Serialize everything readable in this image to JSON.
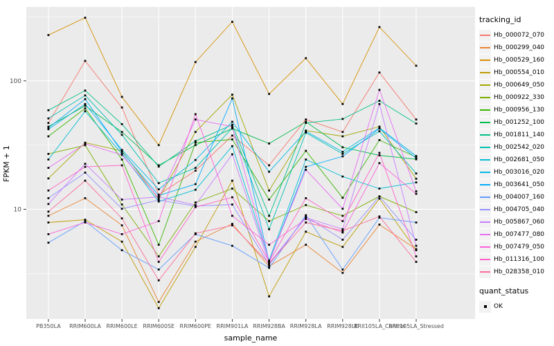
{
  "figure": {
    "background": "#FFFFFF",
    "panel_bg": "#EBEBEB",
    "grid_color": "#FFFFFF",
    "tick_label_color": "#4D4D4D",
    "axis_title_color": "#000000",
    "marker_color": "#000000"
  },
  "chart_data": {
    "type": "line",
    "title": "",
    "xlabel": "sample_name",
    "ylabel": "FPKM + 1",
    "y_scale": "log10",
    "ylim": [
      1.4,
      376
    ],
    "y_tick_values": [
      100,
      10
    ],
    "y_tick_labels": [
      "100",
      "10"
    ],
    "y_minor_tick_values": [
      316.2,
      31.62,
      3.162
    ],
    "grid": true,
    "legend_position": "right",
    "legend_title": "tracking_id",
    "marker": "black-square",
    "quant_legend": {
      "title": "quant_status",
      "items": [
        {
          "label": "OK",
          "marker": "black-square"
        }
      ]
    },
    "categories": [
      "PB350LA",
      "RRIM600LA",
      "RRIM600LE",
      "RRIM600SE",
      "RRIM600PE",
      "RRIM901LA",
      "RRIM928BA",
      "RRIM928LA",
      "RRIM928LE",
      "RRII105LA_Control",
      "RRII105LA_Stressed"
    ],
    "series": [
      {
        "name": "Hb_000072_070",
        "color": "#F8766D",
        "values": [
          47,
          143,
          62,
          13,
          20,
          37.5,
          22,
          50,
          40,
          116,
          50
        ]
      },
      {
        "name": "Hb_000299_040",
        "color": "#EA8331",
        "values": [
          8.9,
          12.2,
          7.5,
          1.9,
          5.6,
          7.7,
          3.6,
          5.3,
          3.2,
          7.6,
          4.9
        ]
      },
      {
        "name": "Hb_000529_160",
        "color": "#D89000",
        "values": [
          227,
          310,
          75,
          31.6,
          140,
          288,
          79,
          150,
          66,
          262,
          131
        ]
      },
      {
        "name": "Hb_000554_010",
        "color": "#C09B00",
        "values": [
          7.9,
          8.3,
          5.6,
          1.7,
          5.1,
          16.7,
          2.1,
          6.7,
          5.1,
          12.1,
          4.8
        ]
      },
      {
        "name": "Hb_000649_050",
        "color": "#A3A500",
        "values": [
          17.4,
          33,
          28.5,
          12,
          40,
          78,
          14,
          41,
          37,
          44,
          17.3
        ]
      },
      {
        "name": "Hb_000922_330",
        "color": "#7CAE00",
        "values": [
          27,
          31.5,
          10.9,
          4.3,
          11.3,
          14.5,
          8.1,
          10.8,
          8.9,
          12.6,
          9.5
        ]
      },
      {
        "name": "Hb_000956_130",
        "color": "#39B600",
        "values": [
          37,
          61,
          24.4,
          5.3,
          33,
          35,
          11.9,
          28.5,
          12.3,
          34.6,
          25.5
        ]
      },
      {
        "name": "Hb_001252_100",
        "color": "#00BB4E",
        "values": [
          44,
          64,
          40,
          22,
          31.6,
          42.5,
          32.5,
          48,
          30.4,
          26.3,
          24.5
        ]
      },
      {
        "name": "Hb_001811_140",
        "color": "#00C087",
        "values": [
          59,
          84,
          46,
          21.5,
          34,
          45.5,
          8.9,
          47,
          50.5,
          70,
          46.5
        ]
      },
      {
        "name": "Hb_002542_020",
        "color": "#00C0B2",
        "values": [
          51,
          77,
          38,
          16,
          21,
          43,
          7.0,
          39.5,
          27,
          40.5,
          19
        ]
      },
      {
        "name": "Hb_002681_050",
        "color": "#00BFD4",
        "values": [
          24.4,
          58,
          27,
          11.5,
          14.2,
          31,
          4.0,
          24.4,
          18,
          14.5,
          16.2
        ]
      },
      {
        "name": "Hb_003016_020",
        "color": "#00B8E5",
        "values": [
          42,
          66,
          29,
          14.3,
          24.2,
          48,
          19.6,
          40.5,
          28,
          43,
          26
        ]
      },
      {
        "name": "Hb_003641_050",
        "color": "#00ACFC",
        "values": [
          43,
          72,
          28,
          12.8,
          15.7,
          73,
          3.9,
          21.4,
          25.8,
          42.5,
          25
        ]
      },
      {
        "name": "Hb_004007_160",
        "color": "#619CFF",
        "values": [
          5.5,
          8.1,
          4.8,
          3.4,
          6.4,
          5.2,
          3.5,
          9.0,
          3.4,
          8.6,
          7.9
        ]
      },
      {
        "name": "Hb_004705_040",
        "color": "#9590FF",
        "values": [
          12.2,
          19.3,
          10.1,
          11.8,
          10.6,
          10.9,
          3.7,
          8.8,
          5.8,
          12.6,
          5.8
        ]
      },
      {
        "name": "Hb_005867_060",
        "color": "#C77CFF",
        "values": [
          11,
          22.6,
          11.9,
          12.5,
          10.8,
          26.8,
          3.8,
          8.6,
          7.0,
          66,
          5.2
        ]
      },
      {
        "name": "Hb_007477_080",
        "color": "#E76BF3",
        "values": [
          21,
          32.4,
          26.5,
          12.2,
          50,
          44,
          3.9,
          20.3,
          10.1,
          85,
          13.8
        ]
      },
      {
        "name": "Hb_007479_050",
        "color": "#FA62DB",
        "values": [
          6.4,
          7.9,
          6.4,
          8.1,
          55,
          8.9,
          5.3,
          8.4,
          6.6,
          22.9,
          13.2
        ]
      },
      {
        "name": "Hb_011316_100",
        "color": "#FF61C9",
        "values": [
          14,
          21.4,
          22,
          3.9,
          10.4,
          12.4,
          3.9,
          12.2,
          8.1,
          27.5,
          4.3
        ]
      },
      {
        "name": "Hb_028358_010",
        "color": "#FF6A98",
        "values": [
          9.6,
          16.7,
          8.5,
          2.8,
          6.5,
          7.5,
          3.8,
          7.9,
          6.8,
          8.8,
          3.9
        ]
      }
    ]
  }
}
